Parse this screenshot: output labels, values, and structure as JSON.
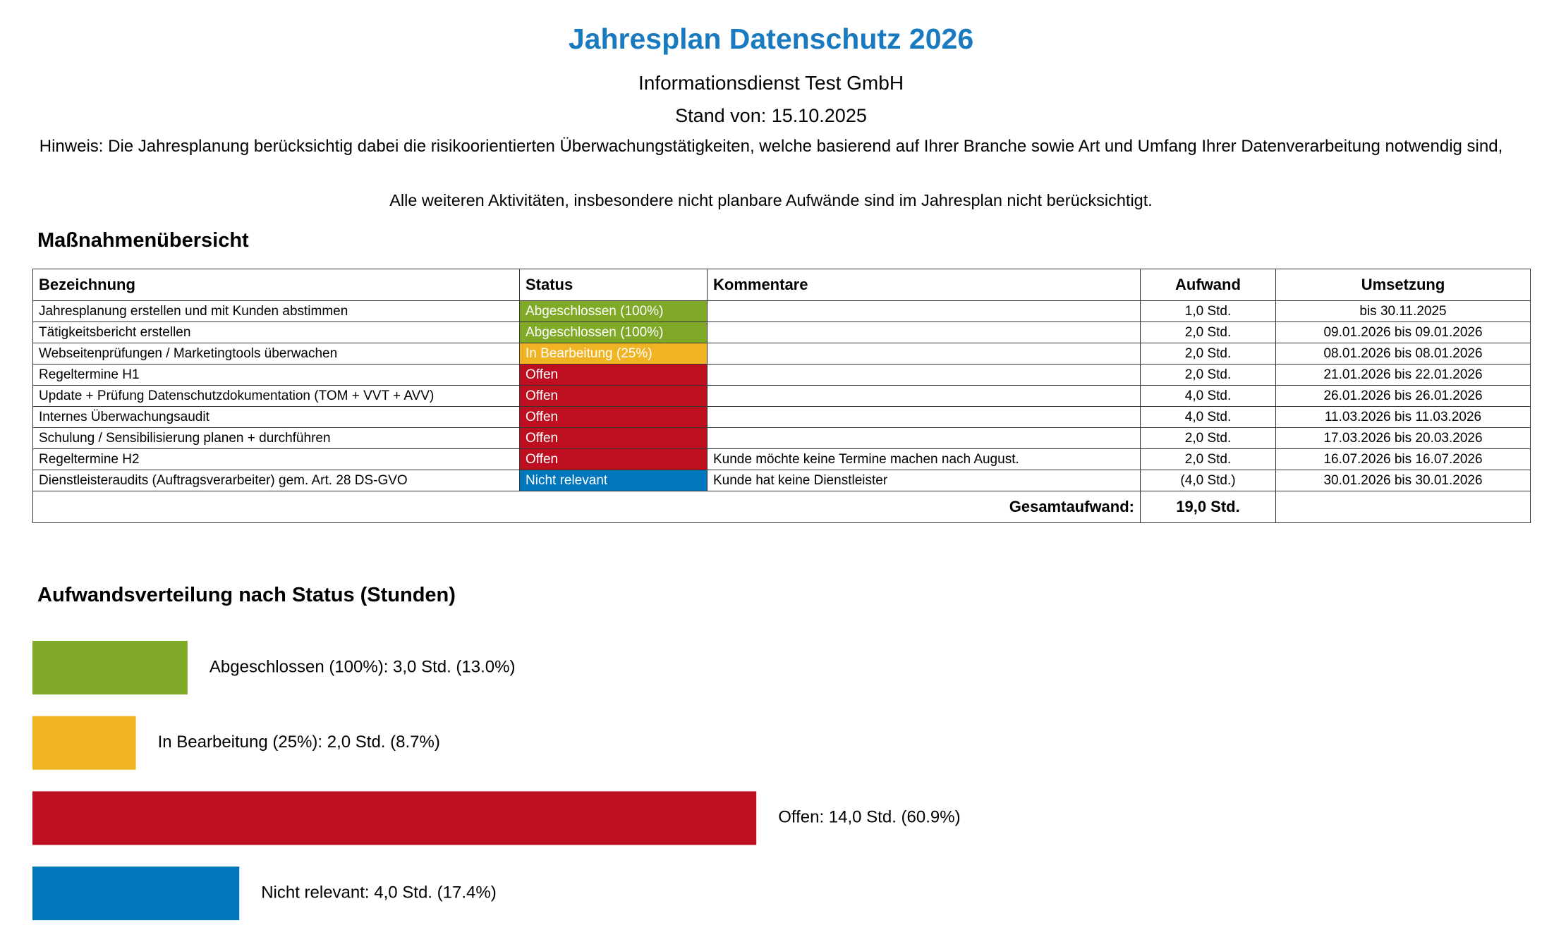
{
  "header": {
    "title": "Jahresplan Datenschutz 2026",
    "company": "Informationsdienst Test GmbH",
    "date": "Stand von: 15.10.2025"
  },
  "notes": [
    "Hinweis: Die Jahresplanung berücksichtig dabei die risikoorientierten Überwachungstätigkeiten, welche basierend auf Ihrer Branche sowie Art und Umfang Ihrer Datenverarbeitung notwendig sind,",
    "Alle weiteren Aktivitäten, insbesondere nicht planbare Aufwände sind im Jahresplan nicht berücksichtigt."
  ],
  "table": {
    "title": "Maßnahmenübersicht",
    "headers": [
      "Bezeichnung",
      "Status",
      "Kommentare",
      "Aufwand",
      "Umsetzung"
    ],
    "rows": [
      [
        "Jahresplanung erstellen und mit Kunden abstimmen",
        "Abgeschlossen (100%)",
        null,
        "1,0 Std.",
        "bis 30.11.2025"
      ],
      [
        "Tätigkeitsbericht erstellen",
        "Abgeschlossen (100%)",
        null,
        "2,0 Std.",
        "09.01.2026 bis 09.01.2026"
      ],
      [
        "Webseitenprüfungen / Marketingtools überwachen",
        "In Bearbeitung (25%)",
        null,
        "2,0 Std.",
        "08.01.2026 bis 08.01.2026"
      ],
      [
        "Regeltermine H1",
        "Offen",
        null,
        "2,0 Std.",
        "21.01.2026 bis 22.01.2026"
      ],
      [
        "Update + Prüfung Datenschutzdokumentation (TOM + VVT + AVV)",
        "Offen",
        null,
        "4,0 Std.",
        "26.01.2026 bis 26.01.2026"
      ],
      [
        "Internes Überwachungsaudit",
        "Offen",
        null,
        "4,0 Std.",
        "11.03.2026 bis 11.03.2026"
      ],
      [
        "Schulung / Sensibilisierung planen + durchführen",
        "Offen",
        null,
        "2,0 Std.",
        "17.03.2026 bis 20.03.2026"
      ],
      [
        "Regeltermine H2",
        "Offen",
        "Kunde möchte keine Termine machen nach August.",
        "2,0 Std.",
        "16.07.2026 bis 16.07.2026"
      ],
      [
        "Dienstleisteraudits (Auftragsverarbeiter)  gem. Art. 28 DS-GVO",
        "Nicht relevant",
        "Kunde hat keine Dienstleister",
        "(4,0 Std.)",
        "30.01.2026 bis 30.01.2026"
      ]
    ],
    "status_colors": [
      "#80a928",
      "#80a928",
      "#f0b323",
      "#bd0f20",
      "#bd0f20",
      "#bd0f20",
      "#bd0f20",
      "#bd0f20",
      "#0077bd"
    ],
    "total_label": "Gesamtaufwand:",
    "total_value": "19,0 Std."
  },
  "chart_data": {
    "type": "bar",
    "orientation": "horizontal",
    "title": "Aufwandsverteilung nach Status (Stunden)",
    "values": [
      3,
      2,
      14,
      4
    ],
    "value_labels": [
      "Abgeschlossen (100%): 3,0 Std. (13.0%)",
      "In Bearbeitung (25%): 2,0 Std. (8.7%)",
      "Offen: 14,0 Std. (60.9%)",
      "Nicht relevant: 4,0 Std. (17.4%)"
    ],
    "colors": [
      "#80a928",
      "#f0b323",
      "#bd0f20",
      "#0077bd"
    ]
  }
}
